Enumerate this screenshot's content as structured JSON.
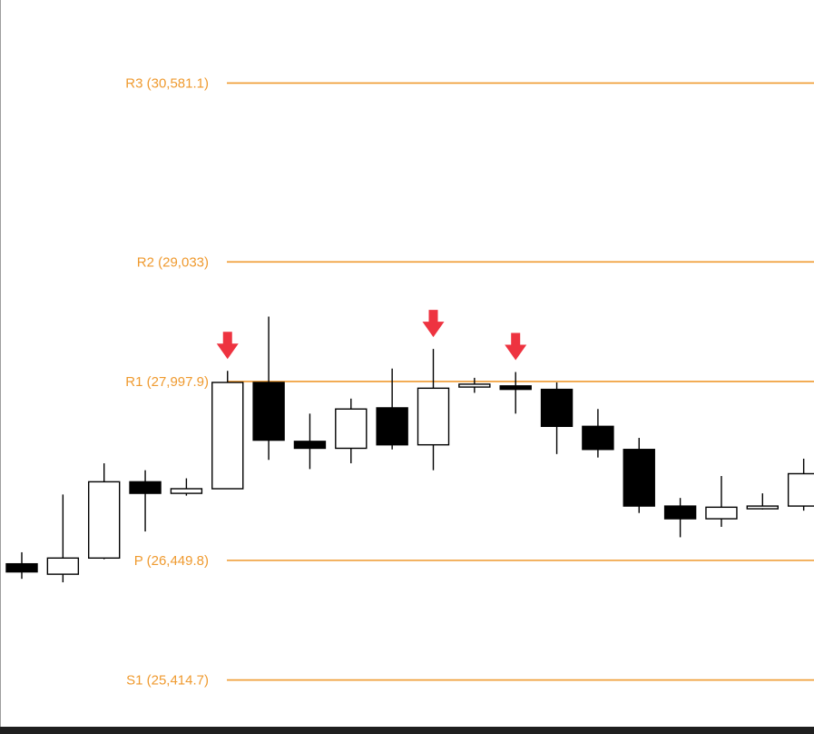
{
  "colors": {
    "level": "#ef9a2f",
    "bull_fill": "#ffffff",
    "bear_fill": "#000000",
    "candle_stroke": "#000000",
    "arrow": "#ee3340",
    "background": "#ffffff",
    "bottom_bar": "#1f1f1f"
  },
  "chart_data": {
    "type": "candlestick",
    "title": "",
    "ylim": [
      25010,
      31300
    ],
    "levels": [
      {
        "name": "R3",
        "label": "R3 (30,581.1)",
        "value": 30581.1
      },
      {
        "name": "R2",
        "label": "R2 (29,033)",
        "value": 29033
      },
      {
        "name": "R1",
        "label": "R1 (27,997.9)",
        "value": 27997.9
      },
      {
        "name": "P",
        "label": "P (26,449.8)",
        "value": 26449.8
      },
      {
        "name": "S1",
        "label": "S1 (25,414.7)",
        "value": 25414.7
      }
    ],
    "candles": [
      {
        "open": 26420,
        "high": 26520,
        "low": 26290,
        "close": 26350
      },
      {
        "open": 26330,
        "high": 27020,
        "low": 26260,
        "close": 26470
      },
      {
        "open": 26470,
        "high": 27290,
        "low": 26460,
        "close": 27130
      },
      {
        "open": 27130,
        "high": 27230,
        "low": 26700,
        "close": 27030
      },
      {
        "open": 27030,
        "high": 27160,
        "low": 27010,
        "close": 27070
      },
      {
        "open": 27070,
        "high": 28090,
        "low": 27070,
        "close": 27990
      },
      {
        "open": 27990,
        "high": 28560,
        "low": 27320,
        "close": 27490
      },
      {
        "open": 27480,
        "high": 27720,
        "low": 27240,
        "close": 27420
      },
      {
        "open": 27420,
        "high": 27850,
        "low": 27290,
        "close": 27760
      },
      {
        "open": 27770,
        "high": 28110,
        "low": 27410,
        "close": 27450
      },
      {
        "open": 27450,
        "high": 28280,
        "low": 27230,
        "close": 27940
      },
      {
        "open": 27950,
        "high": 28030,
        "low": 27900,
        "close": 27975
      },
      {
        "open": 27960,
        "high": 28080,
        "low": 27720,
        "close": 27930
      },
      {
        "open": 27930,
        "high": 27990,
        "low": 27370,
        "close": 27610
      },
      {
        "open": 27610,
        "high": 27760,
        "low": 27340,
        "close": 27410
      },
      {
        "open": 27410,
        "high": 27510,
        "low": 26860,
        "close": 26920
      },
      {
        "open": 26920,
        "high": 26990,
        "low": 26650,
        "close": 26810
      },
      {
        "open": 26810,
        "high": 27180,
        "low": 26740,
        "close": 26910
      },
      {
        "open": 26905,
        "high": 27030,
        "low": 26890,
        "close": 26920
      },
      {
        "open": 26920,
        "high": 27330,
        "low": 26880,
        "close": 27200
      }
    ],
    "signals": [
      {
        "candle_index": 5,
        "type": "down-arrow"
      },
      {
        "candle_index": 10,
        "type": "down-arrow"
      },
      {
        "candle_index": 12,
        "type": "down-arrow"
      }
    ]
  }
}
